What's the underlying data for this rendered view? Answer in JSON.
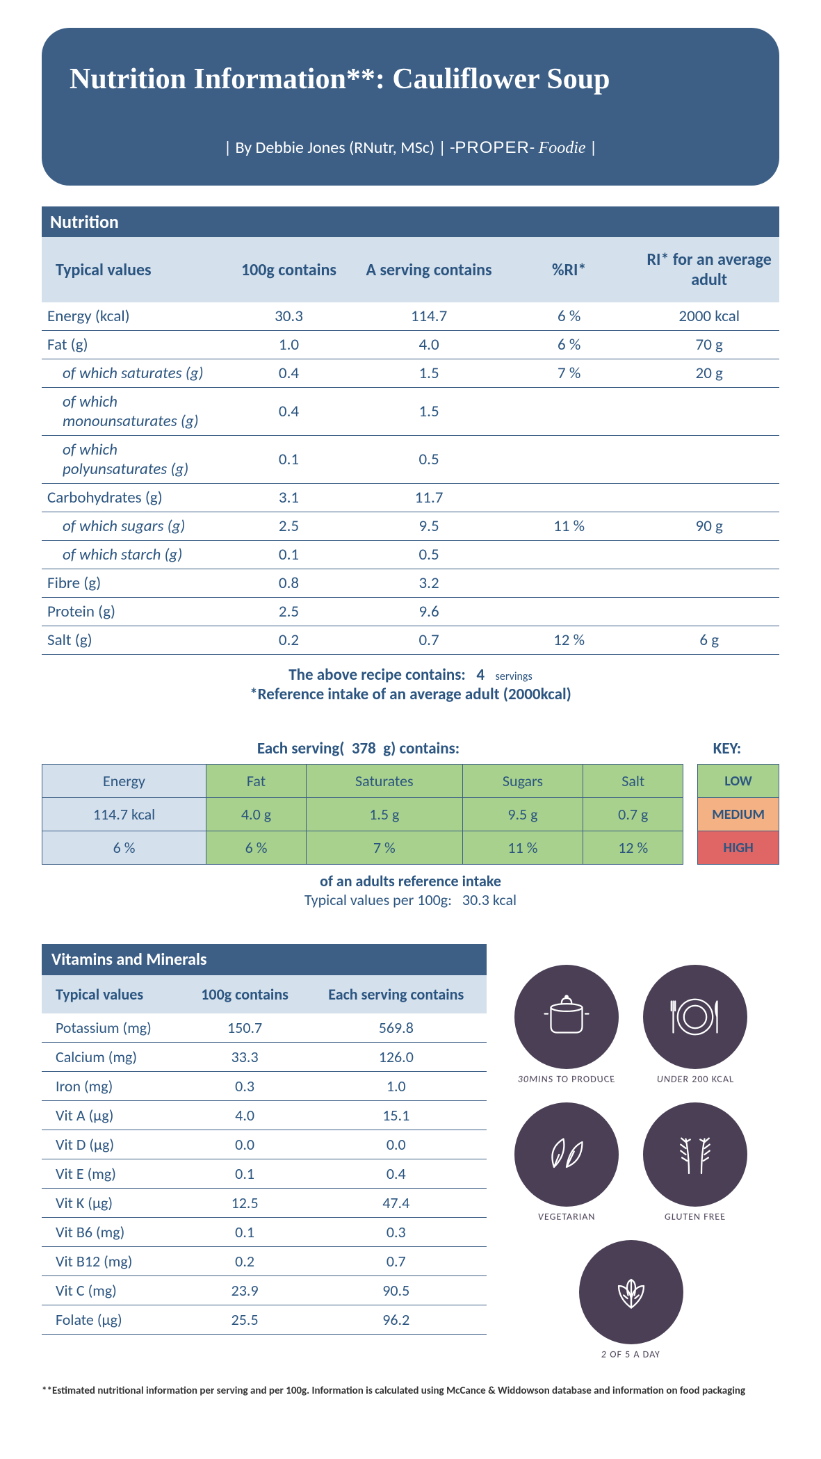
{
  "hero": {
    "title": "Nutrition Information**: Cauliflower Soup",
    "by_prefix": "| By Debbie Jones (RNutr, MSc) | -",
    "brand1": "PROPER",
    "brand_sep": "- ",
    "brand2": "Foodie",
    "by_suffix": " |"
  },
  "nutrition": {
    "header": "Nutrition",
    "cols": [
      "Typical values",
      "100g contains",
      "A serving contains",
      "%RI*",
      "RI* for an average adult"
    ],
    "rows": [
      {
        "sub": false,
        "c": [
          "Energy (kcal)",
          "30.3",
          "114.7",
          "6  %",
          "2000  kcal"
        ]
      },
      {
        "sub": false,
        "c": [
          "Fat (g)",
          "1.0",
          "4.0",
          "6  %",
          "70  g"
        ]
      },
      {
        "sub": true,
        "c": [
          "of which saturates (g)",
          "0.4",
          "1.5",
          "7  %",
          "20  g"
        ]
      },
      {
        "sub": true,
        "c": [
          "of which monounsaturates (g)",
          "0.4",
          "1.5",
          "",
          ""
        ]
      },
      {
        "sub": true,
        "c": [
          "of which polyunsaturates (g)",
          "0.1",
          "0.5",
          "",
          ""
        ]
      },
      {
        "sub": false,
        "c": [
          "Carbohydrates (g)",
          "3.1",
          "11.7",
          "",
          ""
        ]
      },
      {
        "sub": true,
        "c": [
          "of which sugars (g)",
          "2.5",
          "9.5",
          "11  %",
          "90  g"
        ]
      },
      {
        "sub": true,
        "c": [
          "of which starch (g)",
          "0.1",
          "0.5",
          "",
          ""
        ]
      },
      {
        "sub": false,
        "c": [
          "Fibre (g)",
          "0.8",
          "3.2",
          "",
          ""
        ]
      },
      {
        "sub": false,
        "c": [
          "Protein (g)",
          "2.5",
          "9.6",
          "",
          ""
        ]
      },
      {
        "sub": false,
        "c": [
          "Salt (g)",
          "0.2",
          "0.7",
          "12  %",
          "6  g"
        ]
      }
    ],
    "note1a": "The above recipe contains:",
    "note1b": "4",
    "note1c": "servings",
    "note2": "*Reference intake of an average adult (2000kcal)"
  },
  "traffic": {
    "hdr_a": "Each serving(",
    "hdr_b": "378",
    "hdr_c": "g) contains:",
    "key_title": "KEY:",
    "cols": [
      {
        "label": "Energy",
        "val": "114.7  kcal",
        "pct": "6  %",
        "color": "e"
      },
      {
        "label": "Fat",
        "val": "4.0  g",
        "pct": "6  %",
        "color": "g"
      },
      {
        "label": "Saturates",
        "val": "1.5  g",
        "pct": "7  %",
        "color": "g"
      },
      {
        "label": "Sugars",
        "val": "9.5  g",
        "pct": "11  %",
        "color": "g"
      },
      {
        "label": "Salt",
        "val": "0.7  g",
        "pct": "12  %",
        "color": "g"
      }
    ],
    "key": [
      {
        "label": "LOW",
        "bg": "#a8d18d"
      },
      {
        "label": "MEDIUM",
        "bg": "#f4b183"
      },
      {
        "label": "HIGH",
        "bg": "#e06666"
      }
    ],
    "foot1": "of an adults reference intake",
    "foot2a": "Typical values per 100g:",
    "foot2b": "30.3  kcal"
  },
  "vitamins": {
    "header": "Vitamins and Minerals",
    "cols": [
      "Typical values",
      "100g contains",
      "Each serving contains"
    ],
    "rows": [
      [
        "Potassium (mg)",
        "150.7",
        "569.8"
      ],
      [
        "Calcium (mg)",
        "33.3",
        "126.0"
      ],
      [
        "Iron (mg)",
        "0.3",
        "1.0"
      ],
      [
        "Vit A (µg)",
        "4.0",
        "15.1"
      ],
      [
        "Vit D (µg)",
        "0.0",
        "0.0"
      ],
      [
        "Vit E (mg)",
        "0.1",
        "0.4"
      ],
      [
        "Vit K (µg)",
        "12.5",
        "47.4"
      ],
      [
        "Vit B6 (mg)",
        "0.1",
        "0.3"
      ],
      [
        "Vit B12 (mg)",
        "0.2",
        "0.7"
      ],
      [
        "Vit C (mg)",
        "23.9",
        "90.5"
      ],
      [
        "Folate (µg)",
        "25.5",
        "96.2"
      ]
    ]
  },
  "badges": [
    {
      "name": "pot-icon",
      "label": "30MINS TO PRODUCE"
    },
    {
      "name": "plate-icon",
      "label": "UNDER 200 KCAL"
    },
    {
      "name": "leaf-icon",
      "label": "VEGETARIAN"
    },
    {
      "name": "wheat-icon",
      "label": "GLUTEN FREE"
    },
    {
      "name": "leaves-icon",
      "label": "2 OF 5 A DAY"
    }
  ],
  "footnote": "**Estimated nutritional information per serving and per 100g. Information is calculated using McCance & Widdowson database and information on food packaging"
}
